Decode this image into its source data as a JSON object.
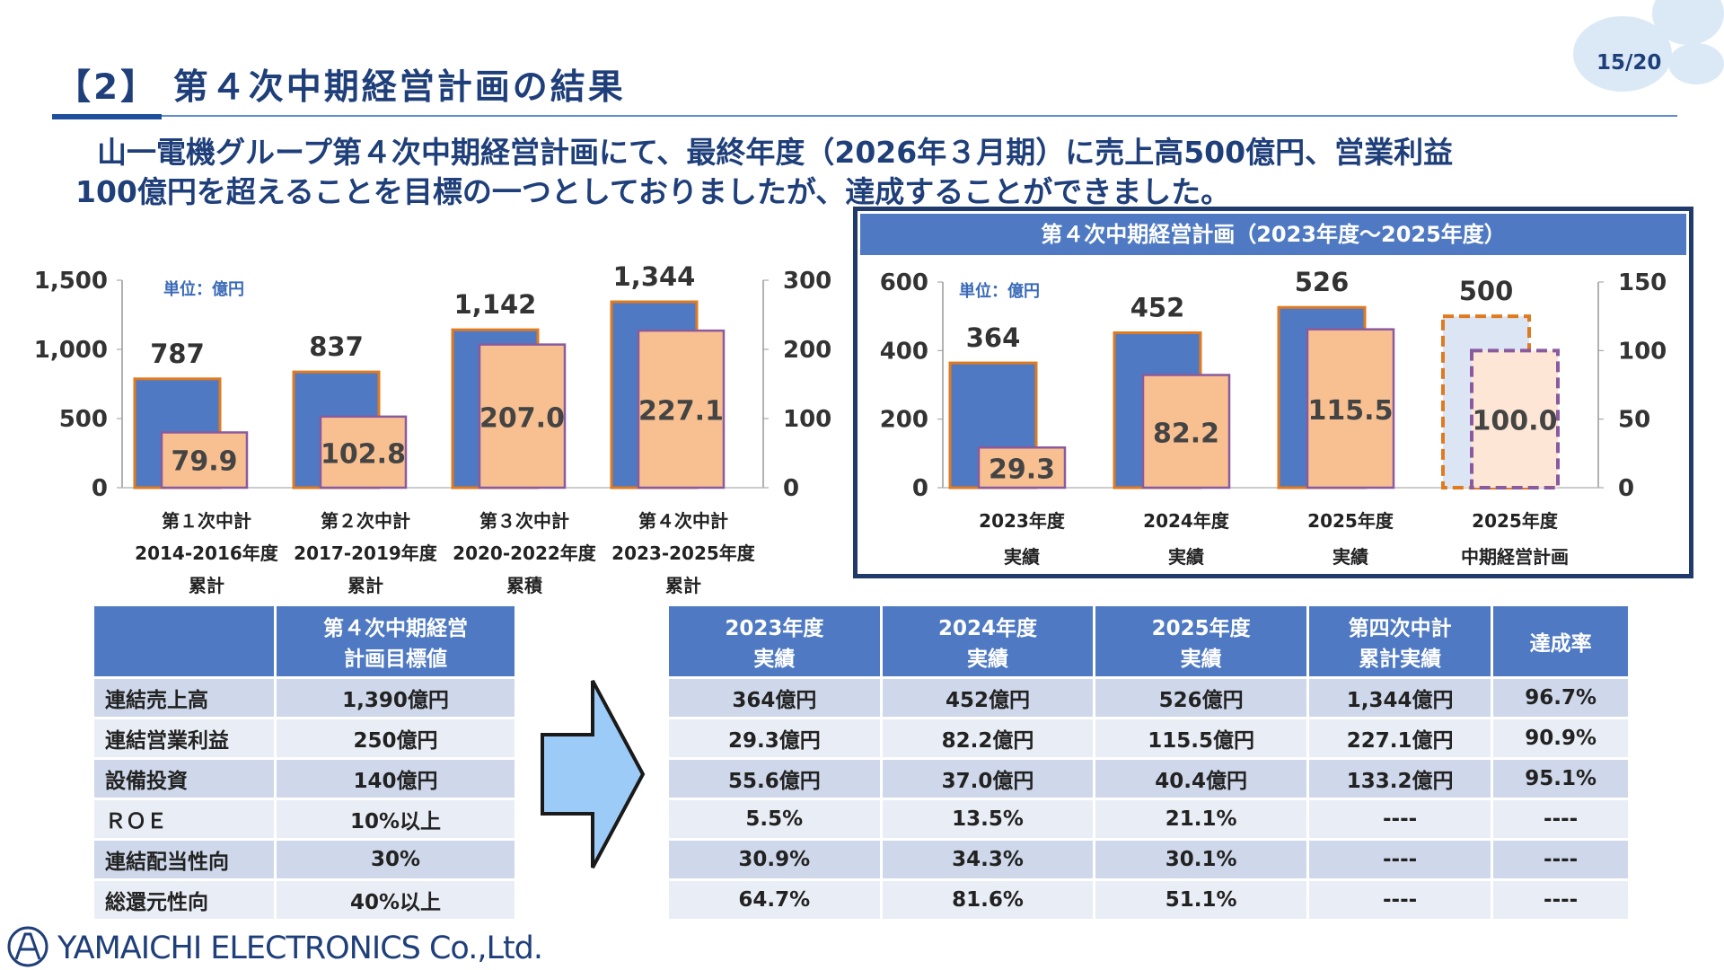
{
  "header": {
    "title": "【2】 第４次中期経営計画の結果",
    "page": "15/20"
  },
  "lead": {
    "line1": "山一電機グループ第４次中期経営計画にて、最終年度（2026年３月期）に売上高500億円、営業利益",
    "line2": "100億円を超えることを目標の一つとしておりましたが、達成することができました。"
  },
  "colors": {
    "navy": "#1f3f7a",
    "sales_bar": "#4f7ac3",
    "profit_bar": "#f8c090",
    "sales_border": "#e07a1f",
    "profit_border": "#8a5a9e",
    "plan_sales_fill": "#dce5f4",
    "plan_profit_fill": "#fde6d6",
    "table_header": "#4f7ac3",
    "row_dark": "#cfd8ea",
    "row_light": "#e9edf5",
    "arrow": "#9dcbf7"
  },
  "chart_data": [
    {
      "type": "bar",
      "unit_label": "単位：億円",
      "categories": [
        [
          "第１次中計",
          "2014-2016年度",
          "累計"
        ],
        [
          "第２次中計",
          "2017-2019年度",
          "累計"
        ],
        [
          "第３次中計",
          "2020-2022年度",
          "累積"
        ],
        [
          "第４次中計",
          "2023-2025年度",
          "累計"
        ]
      ],
      "series": [
        {
          "axis": "left",
          "values": [
            787,
            837,
            1142,
            1344
          ],
          "labels": [
            "787",
            "837",
            "1,142",
            "1,344"
          ]
        },
        {
          "axis": "right",
          "values": [
            79.9,
            102.8,
            207.0,
            227.1
          ],
          "labels": [
            "79.9",
            "102.8",
            "207.0",
            "227.1"
          ]
        }
      ],
      "left_axis": {
        "ylim": [
          0,
          1500
        ],
        "ticks": [
          "0",
          "500",
          "1,000",
          "1,500"
        ]
      },
      "right_axis": {
        "ylim": [
          0,
          300
        ],
        "ticks": [
          "0",
          "100",
          "200",
          "300"
        ]
      }
    },
    {
      "type": "bar",
      "title": "第４次中期経営計画（2023年度～2025年度）",
      "unit_label": "単位：億円",
      "categories": [
        [
          "2023年度",
          "実績"
        ],
        [
          "2024年度",
          "実績"
        ],
        [
          "2025年度",
          "実績"
        ],
        [
          "2025年度",
          "中期経営計画"
        ]
      ],
      "series": [
        {
          "axis": "left",
          "values": [
            364,
            452,
            526,
            500
          ],
          "labels": [
            "364",
            "452",
            "526",
            "500"
          ]
        },
        {
          "axis": "right",
          "values": [
            29.3,
            82.2,
            115.5,
            100.0
          ],
          "labels": [
            "29.3",
            "82.2",
            "115.5",
            "100.0"
          ]
        }
      ],
      "dashed_category": 3,
      "left_axis": {
        "ylim": [
          0,
          600
        ],
        "ticks": [
          "0",
          "200",
          "400",
          "600"
        ]
      },
      "right_axis": {
        "ylim": [
          0,
          150
        ],
        "ticks": [
          "0",
          "50",
          "100",
          "150"
        ]
      }
    }
  ],
  "table_targets": {
    "header": [
      "",
      "第４次中期経営\n計画目標値"
    ],
    "rows": [
      [
        "連結売上高",
        "1,390億円"
      ],
      [
        "連結営業利益",
        "250億円"
      ],
      [
        "設備投資",
        "140億円"
      ],
      [
        "ＲＯＥ",
        "10%以上"
      ],
      [
        "連結配当性向",
        "30%"
      ],
      [
        "総還元性向",
        "40%以上"
      ]
    ]
  },
  "table_results": {
    "header": [
      "2023年度\n実績",
      "2024年度\n実績",
      "2025年度\n実績",
      "第四次中計\n累計実績",
      "達成率"
    ],
    "rows": [
      [
        "364億円",
        "452億円",
        "526億円",
        "1,344億円",
        "96.7%"
      ],
      [
        "29.3億円",
        "82.2億円",
        "115.5億円",
        "227.1億円",
        "90.9%"
      ],
      [
        "55.6億円",
        "37.0億円",
        "40.4億円",
        "133.2億円",
        "95.1%"
      ],
      [
        "5.5%",
        "13.5%",
        "21.1%",
        "----",
        "----"
      ],
      [
        "30.9%",
        "34.3%",
        "30.1%",
        "----",
        "----"
      ],
      [
        "64.7%",
        "81.6%",
        "51.1%",
        "----",
        "----"
      ]
    ]
  },
  "footer": {
    "logo_text": "YAMAICHI ELECTRONICS  Co.,Ltd."
  }
}
